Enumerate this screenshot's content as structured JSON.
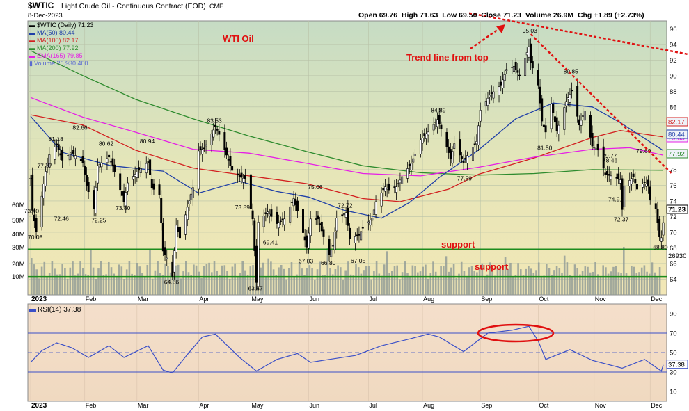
{
  "header": {
    "title_ticker": "$WTIC",
    "title_rest": "Light Crude Oil - Continuous Contract (EOD)",
    "exchange": "CME",
    "date": "8-Dec-2023",
    "ohlc": "Open 69.76  High 71.63  Low 69.50  Close 71.23  Volume 26.9M  Chg +1.89 (+2.73%)"
  },
  "legend": [
    {
      "text": "$WTIC (Daily) 71.23",
      "color": "#000000"
    },
    {
      "text": "MA(50) 80.44",
      "color": "#1f3fa8"
    },
    {
      "text": "MA(100) 82.17",
      "color": "#d21f1f"
    },
    {
      "text": "MA(200) 77.92",
      "color": "#2e8b2e"
    },
    {
      "text": "EMA(165) 79.85",
      "color": "#e61ee6"
    },
    {
      "text": "Volume 26,930,400",
      "color": "#5a6ad0"
    }
  ],
  "annotations": {
    "wti": "WTI Oil",
    "trend": "Trend line from top",
    "support1": "support",
    "support2": "support"
  },
  "colors": {
    "ma50": "#1f3fa8",
    "ma100": "#d21f1f",
    "ma200": "#2e8b2e",
    "ema165": "#e61ee6",
    "support": "#1d8c1d",
    "annotation": "#e01010",
    "rsi": "#3a4fc8",
    "volume": "#8f9a96"
  },
  "chart_data": [
    {
      "type": "candlestick",
      "title": "$WTIC Light Crude Oil - Continuous Contract (EOD)",
      "ylim": [
        62,
        97
      ],
      "yticks": [
        64,
        66,
        68,
        70,
        72,
        74,
        76,
        78,
        80,
        82,
        84,
        86,
        88,
        90,
        92,
        94,
        96
      ],
      "x_labels": [
        "2023",
        "Feb",
        "Mar",
        "Apr",
        "May",
        "Jun",
        "Jul",
        "Aug",
        "Sep",
        "Oct",
        "Nov",
        "Dec"
      ],
      "x_dates": [
        "2023-01-03",
        "2023-02-01",
        "2023-03-01",
        "2023-04-03",
        "2023-05-01",
        "2023-06-01",
        "2023-07-03",
        "2023-08-01",
        "2023-09-01",
        "2023-10-02",
        "2023-11-01",
        "2023-12-01"
      ],
      "close_path": [
        [
          "2023-01-03",
          76.9
        ],
        [
          "2023-01-04",
          72.8
        ],
        [
          "2023-01-06",
          70.08
        ],
        [
          "2023-01-09",
          74.6
        ],
        [
          "2023-01-11",
          77.77
        ],
        [
          "2023-01-13",
          79.9
        ],
        [
          "2023-01-17",
          81.18
        ],
        [
          "2023-01-20",
          79.2
        ],
        [
          "2023-01-25",
          80.2
        ],
        [
          "2023-01-27",
          79.8
        ],
        [
          "2023-01-31",
          78.9
        ],
        [
          "2023-02-02",
          75.9
        ],
        [
          "2023-02-06",
          73.0
        ],
        [
          "2023-02-08",
          78.5
        ],
        [
          "2023-02-14",
          79.6
        ],
        [
          "2023-02-16",
          78.5
        ],
        [
          "2023-02-22",
          73.9
        ],
        [
          "2023-02-24",
          76.3
        ],
        [
          "2023-03-01",
          77.7
        ],
        [
          "2023-03-07",
          79.0
        ],
        [
          "2023-03-09",
          75.7
        ],
        [
          "2023-03-13",
          74.8
        ],
        [
          "2023-03-15",
          67.6
        ],
        [
          "2023-03-17",
          66.7
        ],
        [
          "2023-03-20",
          64.36
        ],
        [
          "2023-03-22",
          70.9
        ],
        [
          "2023-03-24",
          69.3
        ],
        [
          "2023-03-28",
          73.2
        ],
        [
          "2023-03-31",
          75.7
        ],
        [
          "2023-04-03",
          80.4
        ],
        [
          "2023-04-06",
          80.7
        ],
        [
          "2023-04-12",
          83.53
        ],
        [
          "2023-04-14",
          82.5
        ],
        [
          "2023-04-19",
          79.2
        ],
        [
          "2023-04-21",
          77.9
        ],
        [
          "2023-04-25",
          77.1
        ],
        [
          "2023-04-28",
          76.8
        ],
        [
          "2023-05-02",
          71.7
        ],
        [
          "2023-05-04",
          63.57
        ],
        [
          "2023-05-05",
          71.3
        ],
        [
          "2023-05-10",
          72.6
        ],
        [
          "2023-05-15",
          71.1
        ],
        [
          "2023-05-19",
          71.7
        ],
        [
          "2023-05-24",
          74.3
        ],
        [
          "2023-05-26",
          72.7
        ],
        [
          "2023-05-31",
          68.1
        ],
        [
          "2023-06-02",
          71.7
        ],
        [
          "2023-06-06",
          71.7
        ],
        [
          "2023-06-12",
          67.12
        ],
        [
          "2023-06-14",
          68.3
        ],
        [
          "2023-06-16",
          71.8
        ],
        [
          "2023-06-21",
          72.5
        ],
        [
          "2023-06-23",
          69.2
        ],
        [
          "2023-06-28",
          69.6
        ],
        [
          "2023-06-30",
          70.6
        ],
        [
          "2023-07-05",
          71.8
        ],
        [
          "2023-07-07",
          73.9
        ],
        [
          "2023-07-12",
          75.8
        ],
        [
          "2023-07-14",
          75.4
        ],
        [
          "2023-07-18",
          75.8
        ],
        [
          "2023-07-21",
          77.1
        ],
        [
          "2023-07-26",
          78.8
        ],
        [
          "2023-07-31",
          81.8
        ],
        [
          "2023-08-04",
          82.8
        ],
        [
          "2023-08-09",
          84.4
        ],
        [
          "2023-08-11",
          83.2
        ],
        [
          "2023-08-16",
          79.4
        ],
        [
          "2023-08-18",
          81.3
        ],
        [
          "2023-08-23",
          78.9
        ],
        [
          "2023-08-25",
          79.8
        ],
        [
          "2023-08-30",
          81.6
        ],
        [
          "2023-09-01",
          85.6
        ],
        [
          "2023-09-06",
          87.5
        ],
        [
          "2023-09-12",
          88.8
        ],
        [
          "2023-09-15",
          90.8
        ],
        [
          "2023-09-19",
          91.2
        ],
        [
          "2023-09-22",
          90.0
        ],
        [
          "2023-09-27",
          93.7
        ],
        [
          "2023-09-28",
          91.7
        ],
        [
          "2023-10-02",
          88.8
        ],
        [
          "2023-10-04",
          84.2
        ],
        [
          "2023-10-06",
          82.8
        ],
        [
          "2023-10-09",
          86.4
        ],
        [
          "2023-10-12",
          82.9
        ],
        [
          "2023-10-17",
          86.7
        ],
        [
          "2023-10-20",
          88.1
        ],
        [
          "2023-10-24",
          83.7
        ],
        [
          "2023-10-27",
          85.5
        ],
        [
          "2023-10-31",
          81.0
        ],
        [
          "2023-11-03",
          80.5
        ],
        [
          "2023-11-07",
          77.4
        ],
        [
          "2023-11-10",
          77.2
        ],
        [
          "2023-11-15",
          76.7
        ],
        [
          "2023-11-16",
          72.9
        ],
        [
          "2023-11-17",
          75.9
        ],
        [
          "2023-11-22",
          77.1
        ],
        [
          "2023-11-24",
          75.5
        ],
        [
          "2023-11-28",
          76.4
        ],
        [
          "2023-11-30",
          75.9
        ],
        [
          "2023-12-01",
          74.1
        ],
        [
          "2023-12-04",
          73.0
        ],
        [
          "2023-12-06",
          69.4
        ],
        [
          "2023-12-07",
          69.3
        ],
        [
          "2023-12-08",
          71.23
        ]
      ],
      "price_labels": [
        {
          "date": "2023-01-04",
          "value": "73.40",
          "pos": "below"
        },
        {
          "date": "2023-01-06",
          "value": "70.08",
          "pos": "below"
        },
        {
          "date": "2023-01-11",
          "value": "77.77",
          "pos": "above"
        },
        {
          "date": "2023-01-17",
          "value": "81.18",
          "pos": "above"
        },
        {
          "date": "2023-01-20",
          "value": "72.46",
          "pos": "below"
        },
        {
          "date": "2023-01-30",
          "value": "82.66",
          "pos": "above"
        },
        {
          "date": "2023-02-09",
          "value": "72.25",
          "pos": "below"
        },
        {
          "date": "2023-02-13",
          "value": "80.62",
          "pos": "above"
        },
        {
          "date": "2023-02-22",
          "value": "73.80",
          "pos": "below"
        },
        {
          "date": "2023-03-07",
          "value": "80.94",
          "pos": "above"
        },
        {
          "date": "2023-03-20",
          "value": "64.36",
          "pos": "below"
        },
        {
          "date": "2023-04-12",
          "value": "83.53",
          "pos": "above"
        },
        {
          "date": "2023-04-27",
          "value": "73.89",
          "pos": "below"
        },
        {
          "date": "2023-05-04",
          "value": "63.57",
          "pos": "below"
        },
        {
          "date": "2023-05-12",
          "value": "69.41",
          "pos": "below"
        },
        {
          "date": "2023-05-31",
          "value": "67.03",
          "pos": "below"
        },
        {
          "date": "2023-06-05",
          "value": "75.06",
          "pos": "above"
        },
        {
          "date": "2023-06-12",
          "value": "66.80",
          "pos": "below"
        },
        {
          "date": "2023-06-21",
          "value": "72.72",
          "pos": "above"
        },
        {
          "date": "2023-06-28",
          "value": "67.05",
          "pos": "below"
        },
        {
          "date": "2023-08-10",
          "value": "84.89",
          "pos": "above"
        },
        {
          "date": "2023-08-24",
          "value": "77.59",
          "pos": "below"
        },
        {
          "date": "2023-09-28",
          "value": "95.03",
          "pos": "above"
        },
        {
          "date": "2023-10-06",
          "value": "81.50",
          "pos": "below"
        },
        {
          "date": "2023-10-20",
          "value": "89.85",
          "pos": "above"
        },
        {
          "date": "2023-11-03",
          "value": "79.77",
          "pos": "right"
        },
        {
          "date": "2023-11-10",
          "value": "78.46",
          "pos": "above"
        },
        {
          "date": "2023-11-16",
          "value": "72.37",
          "pos": "below"
        },
        {
          "date": "2023-11-13",
          "value": "74.91",
          "pos": "below"
        },
        {
          "date": "2023-11-28",
          "value": "79.69",
          "pos": "above"
        },
        {
          "date": "2023-12-07",
          "value": "68.80",
          "pos": "below"
        }
      ],
      "moving_averages": {
        "MA50": [
          [
            "2023-01-03",
            84.8
          ],
          [
            "2023-01-20",
            80.2
          ],
          [
            "2023-02-15",
            78.5
          ],
          [
            "2023-03-15",
            77.8
          ],
          [
            "2023-04-03",
            75.0
          ],
          [
            "2023-04-25",
            76.5
          ],
          [
            "2023-05-15",
            75.2
          ],
          [
            "2023-06-01",
            74.5
          ],
          [
            "2023-06-20",
            72.8
          ],
          [
            "2023-07-10",
            71.8
          ],
          [
            "2023-07-25",
            73.8
          ],
          [
            "2023-08-10",
            77.0
          ],
          [
            "2023-08-31",
            80.5
          ],
          [
            "2023-09-20",
            84.5
          ],
          [
            "2023-10-10",
            86.5
          ],
          [
            "2023-10-31",
            86.0
          ],
          [
            "2023-11-15",
            84.0
          ],
          [
            "2023-12-08",
            80.44
          ]
        ],
        "MA100": [
          [
            "2023-01-03",
            85.0
          ],
          [
            "2023-01-31",
            83.7
          ],
          [
            "2023-02-28",
            80.5
          ],
          [
            "2023-03-31",
            78.2
          ],
          [
            "2023-04-30",
            77.2
          ],
          [
            "2023-05-31",
            76.2
          ],
          [
            "2023-06-30",
            74.3
          ],
          [
            "2023-07-20",
            73.9
          ],
          [
            "2023-08-15",
            75.5
          ],
          [
            "2023-08-31",
            77.4
          ],
          [
            "2023-09-30",
            79.5
          ],
          [
            "2023-10-31",
            82.1
          ],
          [
            "2023-11-15",
            83.0
          ],
          [
            "2023-12-08",
            82.17
          ]
        ],
        "MA200": [
          [
            "2023-01-03",
            93.2
          ],
          [
            "2023-01-31",
            90.0
          ],
          [
            "2023-02-28",
            87.0
          ],
          [
            "2023-03-31",
            84.5
          ],
          [
            "2023-04-30",
            82.3
          ],
          [
            "2023-05-31",
            80.3
          ],
          [
            "2023-06-30",
            78.5
          ],
          [
            "2023-07-31",
            77.6
          ],
          [
            "2023-08-31",
            77.3
          ],
          [
            "2023-09-30",
            77.5
          ],
          [
            "2023-10-31",
            78.0
          ],
          [
            "2023-12-08",
            77.92
          ]
        ],
        "EMA165": [
          [
            "2023-01-03",
            87.2
          ],
          [
            "2023-01-31",
            84.7
          ],
          [
            "2023-02-28",
            82.8
          ],
          [
            "2023-03-31",
            80.6
          ],
          [
            "2023-04-30",
            80.1
          ],
          [
            "2023-05-31",
            78.8
          ],
          [
            "2023-06-30",
            77.5
          ],
          [
            "2023-07-31",
            77.2
          ],
          [
            "2023-08-31",
            78.3
          ],
          [
            "2023-09-30",
            79.6
          ],
          [
            "2023-10-31",
            80.6
          ],
          [
            "2023-11-20",
            80.8
          ],
          [
            "2023-12-08",
            79.85
          ]
        ]
      },
      "last_values": [
        {
          "label": "82.17",
          "color": "#d21f1f"
        },
        {
          "label": "79.85",
          "color": "#e61ee6"
        },
        {
          "label": "80.44",
          "color": "#1f3fa8"
        },
        {
          "label": "77.92",
          "color": "#2e8b2e"
        },
        {
          "label": "71.23",
          "color": "#000000"
        }
      ],
      "volume_ticks": [
        "10M",
        "20M",
        "30M",
        "40M",
        "50M",
        "60M"
      ],
      "volume_last": "26930",
      "support_levels": [
        67.8,
        64.3
      ],
      "trend_lines": [
        {
          "from": [
            "2023-08-26",
            98.0
          ],
          "to": [
            "2023-12-31",
            92.3
          ]
        },
        {
          "from": [
            "2023-09-28",
            95.3
          ],
          "to": [
            "2023-12-13",
            77.4
          ]
        }
      ],
      "highlight": "overbought RSI region, Sep 2023"
    },
    {
      "type": "line",
      "title": "RSI(14) 37.38",
      "ylim": [
        0,
        100
      ],
      "yticks": [
        10,
        30,
        50,
        70,
        90
      ],
      "reference_lines": [
        30,
        50,
        70
      ],
      "last_value": "37.38",
      "series": [
        [
          "2023-01-03",
          40
        ],
        [
          "2023-01-09",
          52
        ],
        [
          "2023-01-17",
          60
        ],
        [
          "2023-01-25",
          55
        ],
        [
          "2023-02-03",
          45
        ],
        [
          "2023-02-14",
          57
        ],
        [
          "2023-02-22",
          45
        ],
        [
          "2023-03-07",
          57
        ],
        [
          "2023-03-15",
          32
        ],
        [
          "2023-03-20",
          29
        ],
        [
          "2023-03-28",
          48
        ],
        [
          "2023-04-05",
          66
        ],
        [
          "2023-04-12",
          69
        ],
        [
          "2023-04-25",
          45
        ],
        [
          "2023-05-04",
          31
        ],
        [
          "2023-05-15",
          43
        ],
        [
          "2023-05-26",
          49
        ],
        [
          "2023-06-02",
          40
        ],
        [
          "2023-06-12",
          43
        ],
        [
          "2023-06-26",
          47
        ],
        [
          "2023-07-10",
          57
        ],
        [
          "2023-07-25",
          64
        ],
        [
          "2023-08-04",
          69
        ],
        [
          "2023-08-10",
          66
        ],
        [
          "2023-08-23",
          51
        ],
        [
          "2023-09-05",
          70
        ],
        [
          "2023-09-18",
          73
        ],
        [
          "2023-09-27",
          77
        ],
        [
          "2023-10-02",
          62
        ],
        [
          "2023-10-06",
          43
        ],
        [
          "2023-10-19",
          53
        ],
        [
          "2023-10-31",
          42
        ],
        [
          "2023-11-16",
          34
        ],
        [
          "2023-11-28",
          43
        ],
        [
          "2023-12-07",
          31
        ],
        [
          "2023-12-08",
          37.38
        ]
      ]
    }
  ]
}
